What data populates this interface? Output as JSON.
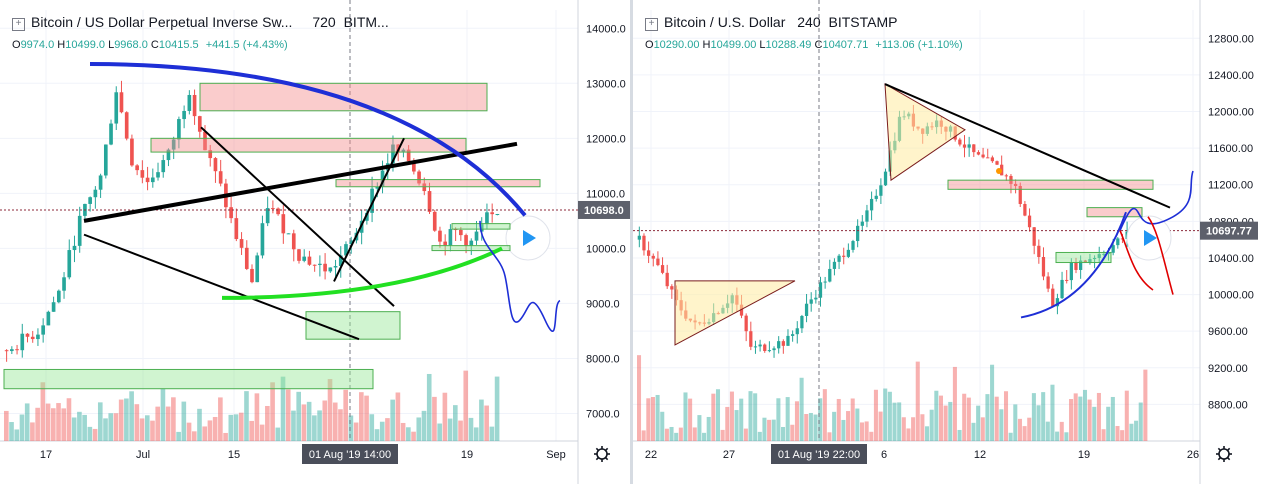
{
  "chart_data": [
    {
      "type": "candlestick",
      "title": "Bitcoin / US Dollar Perpetual Inverse Sw...",
      "interval": "720",
      "exchange": "BITM...",
      "ohlc": {
        "O": "9974.0",
        "H": "10499.0",
        "L": "9968.0",
        "C": "10415.5",
        "change": "+441.5 (+4.43%)"
      },
      "y_ticks": [
        "14000.0",
        "13000.0",
        "12000.0",
        "11000.0",
        "10000.0",
        "9000.0",
        "8000.0",
        "7000.0"
      ],
      "ylim": [
        6500,
        14150
      ],
      "x_ticks": [
        "17",
        "Jul",
        "15",
        "19",
        "Sep"
      ],
      "cursor_time_label": "01 Aug '19   14:00",
      "current_price_label": "10698.0",
      "current_price": 10698,
      "price_path": [
        [
          0,
          8150
        ],
        [
          6,
          8500
        ],
        [
          10,
          9200
        ],
        [
          14,
          10500
        ],
        [
          18,
          11300
        ],
        [
          21,
          12900
        ],
        [
          24,
          11600
        ],
        [
          27,
          11200
        ],
        [
          31,
          11700
        ],
        [
          35,
          12900
        ],
        [
          38,
          11800
        ],
        [
          41,
          11100
        ],
        [
          44,
          10200
        ],
        [
          47,
          9400
        ],
        [
          50,
          10800
        ],
        [
          53,
          10400
        ],
        [
          56,
          9900
        ],
        [
          59,
          9700
        ],
        [
          62,
          9600
        ],
        [
          66,
          10100
        ],
        [
          70,
          11000
        ],
        [
          74,
          11800
        ],
        [
          77,
          11600
        ],
        [
          80,
          11100
        ],
        [
          83,
          10100
        ],
        [
          86,
          10300
        ],
        [
          89,
          10100
        ],
        [
          92,
          10550
        ],
        [
          94,
          10500
        ]
      ],
      "colors": {
        "up": "#26a69a",
        "down": "#ef5350"
      }
    },
    {
      "type": "candlestick",
      "title": "Bitcoin / U.S. Dollar",
      "interval": "240",
      "exchange": "BITSTAMP",
      "ohlc": {
        "O": "10290.00",
        "H": "10499.00",
        "L": "10288.49",
        "C": "10407.71",
        "change": "+113.06 (+1.10%)"
      },
      "y_ticks": [
        "12800.00",
        "12400.00",
        "12000.00",
        "11600.00",
        "11200.00",
        "10800.00",
        "10400.00",
        "10000.00",
        "9600.00",
        "9200.00",
        "8800.00"
      ],
      "ylim": [
        8400,
        13000
      ],
      "x_ticks": [
        "22",
        "27",
        "6",
        "12",
        "19",
        "26"
      ],
      "cursor_time_label": "01 Aug '19   22:00",
      "current_price_label": "10697.77",
      "current_price": 10698,
      "price_path": [
        [
          0,
          10600
        ],
        [
          4,
          10300
        ],
        [
          8,
          9900
        ],
        [
          12,
          9650
        ],
        [
          16,
          9800
        ],
        [
          20,
          10000
        ],
        [
          24,
          9400
        ],
        [
          28,
          9450
        ],
        [
          32,
          9500
        ],
        [
          36,
          9900
        ],
        [
          40,
          10200
        ],
        [
          44,
          10500
        ],
        [
          48,
          10800
        ],
        [
          52,
          11300
        ],
        [
          56,
          12000
        ],
        [
          60,
          11800
        ],
        [
          64,
          11900
        ],
        [
          68,
          11700
        ],
        [
          72,
          11500
        ],
        [
          76,
          11400
        ],
        [
          80,
          11200
        ],
        [
          84,
          10600
        ],
        [
          88,
          9900
        ],
        [
          92,
          10300
        ],
        [
          96,
          10400
        ],
        [
          100,
          10500
        ],
        [
          104,
          10650
        ],
        [
          108,
          10600
        ]
      ],
      "colors": {
        "up": "#26a69a",
        "down": "#ef5350"
      }
    }
  ]
}
